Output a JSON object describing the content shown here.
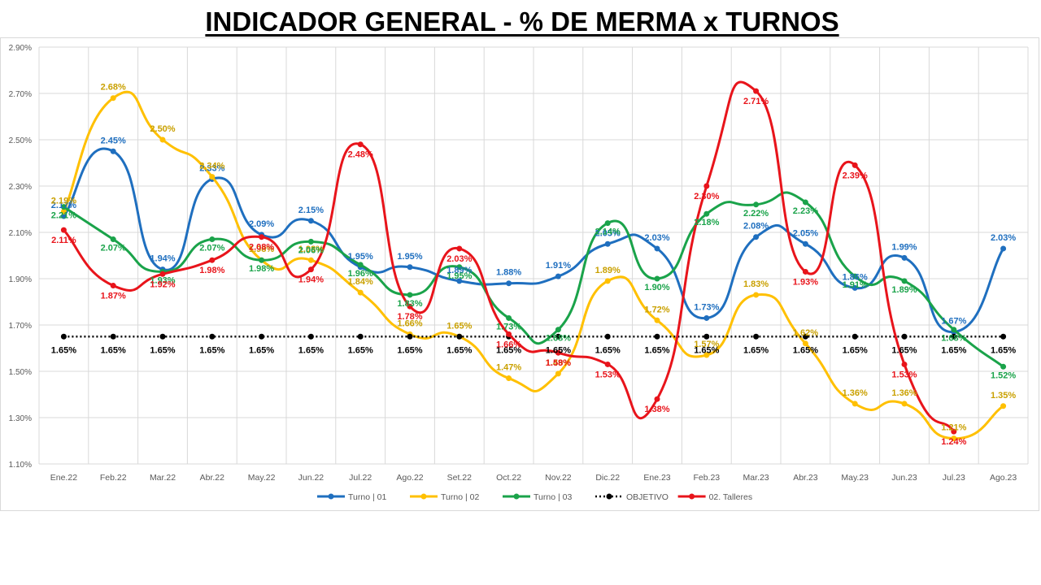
{
  "title": "INDICADOR GENERAL - % DE MERMA x TURNOS",
  "chart_data": {
    "type": "line",
    "categories": [
      "Ene.22",
      "Feb.22",
      "Mar.22",
      "Abr.22",
      "May.22",
      "Jun.22",
      "Jul.22",
      "Ago.22",
      "Set.22",
      "Oct.22",
      "Nov.22",
      "Dic.22",
      "Ene.23",
      "Feb.23",
      "Mar.23",
      "Abr.23",
      "May.23",
      "Jun.23",
      "Jul.23",
      "Ago.23"
    ],
    "ylim": [
      1.1,
      2.9
    ],
    "yticks": [
      1.1,
      1.3,
      1.5,
      1.7,
      1.9,
      2.1,
      2.3,
      2.5,
      2.7,
      2.9
    ],
    "ytick_labels": [
      "1.10%",
      "1.30%",
      "1.50%",
      "1.70%",
      "1.90%",
      "2.10%",
      "2.30%",
      "2.50%",
      "2.70%",
      "2.90%"
    ],
    "grid": true,
    "legend_position": "bottom",
    "series": [
      {
        "name": "Turno | 01",
        "color": "#1f6fbf",
        "smooth": true,
        "values": [
          2.17,
          2.45,
          1.94,
          2.33,
          2.09,
          2.15,
          1.95,
          1.95,
          1.89,
          1.88,
          1.91,
          2.05,
          2.03,
          1.73,
          2.08,
          2.05,
          1.86,
          1.99,
          1.67,
          2.03
        ],
        "labels": [
          "2.17%",
          "2.45%",
          "1.94%",
          "2.33%",
          "2.09%",
          "2.15%",
          "1.95%",
          "1.95%",
          "1.89%",
          "1.88%",
          "1.91%",
          "2.05%",
          "2.03%",
          "1.73%",
          "2.08%",
          "2.05%",
          "1.86%",
          "1.99%",
          "1.67%",
          "2.03%"
        ]
      },
      {
        "name": "Turno | 02",
        "color": "#ffc000",
        "label_color": "#c9a000",
        "smooth": true,
        "values": [
          2.19,
          2.68,
          2.5,
          2.34,
          1.98,
          1.98,
          1.84,
          1.66,
          1.65,
          1.47,
          1.49,
          1.89,
          1.72,
          1.57,
          1.83,
          1.62,
          1.36,
          1.36,
          1.21,
          1.35
        ],
        "labels": [
          "2.19%",
          "2.68%",
          "2.50%",
          "2.34%",
          "1.98%",
          "1.98%",
          "1.84%",
          "1.66%",
          "1.65%",
          "1.47%",
          "1.49%",
          "1.89%",
          "1.72%",
          "1.57%",
          "1.83%",
          "1.62%",
          "1.36%",
          "1.36%",
          "1.21%",
          "1.35%"
        ]
      },
      {
        "name": "Turno | 03",
        "color": "#1aa34a",
        "smooth": true,
        "values": [
          2.21,
          2.07,
          1.93,
          2.07,
          1.98,
          2.06,
          1.96,
          1.83,
          1.95,
          1.73,
          1.68,
          2.14,
          1.9,
          2.18,
          2.22,
          2.23,
          1.91,
          1.89,
          1.68,
          1.52
        ],
        "labels": [
          "2.21%",
          "2.07%",
          "1.93%",
          "2.07%",
          "1.98%",
          "2.06%",
          "1.96%",
          "1.83%",
          "1.95%",
          "1.73%",
          "1.68%",
          "2.14%",
          "1.90%",
          "2.18%",
          "2.22%",
          "2.23%",
          "1.91%",
          "1.89%",
          "1.68%",
          "1.52%"
        ]
      },
      {
        "name": "OBJETIVO",
        "color": "#000000",
        "dotted": true,
        "values": [
          1.65,
          1.65,
          1.65,
          1.65,
          1.65,
          1.65,
          1.65,
          1.65,
          1.65,
          1.65,
          1.65,
          1.65,
          1.65,
          1.65,
          1.65,
          1.65,
          1.65,
          1.65,
          1.65,
          1.65
        ],
        "labels": [
          "1.65%",
          "1.65%",
          "1.65%",
          "1.65%",
          "1.65%",
          "1.65%",
          "1.65%",
          "1.65%",
          "1.65%",
          "1.65%",
          "1.65%",
          "1.65%",
          "1.65%",
          "1.65%",
          "1.65%",
          "1.65%",
          "1.65%",
          "1.65%",
          "1.65%",
          "1.65%"
        ]
      },
      {
        "name": "02. Talleres",
        "color": "#e8141b",
        "smooth": true,
        "values": [
          2.11,
          1.87,
          1.92,
          1.98,
          2.08,
          1.94,
          2.48,
          1.78,
          2.03,
          1.66,
          1.58,
          1.53,
          1.38,
          2.3,
          2.71,
          1.93,
          2.39,
          1.53,
          1.24,
          null
        ],
        "labels": [
          "2.11%",
          "1.87%",
          "1.92%",
          "1.98%",
          "2.08%",
          "1.94%",
          "2.48%",
          "1.78%",
          "2.03%",
          "1.66%",
          "1.58%",
          "1.53%",
          "1.38%",
          "2.30%",
          "2.71%",
          "1.93%",
          "2.39%",
          "1.53%",
          "1.24%",
          null
        ]
      }
    ]
  }
}
